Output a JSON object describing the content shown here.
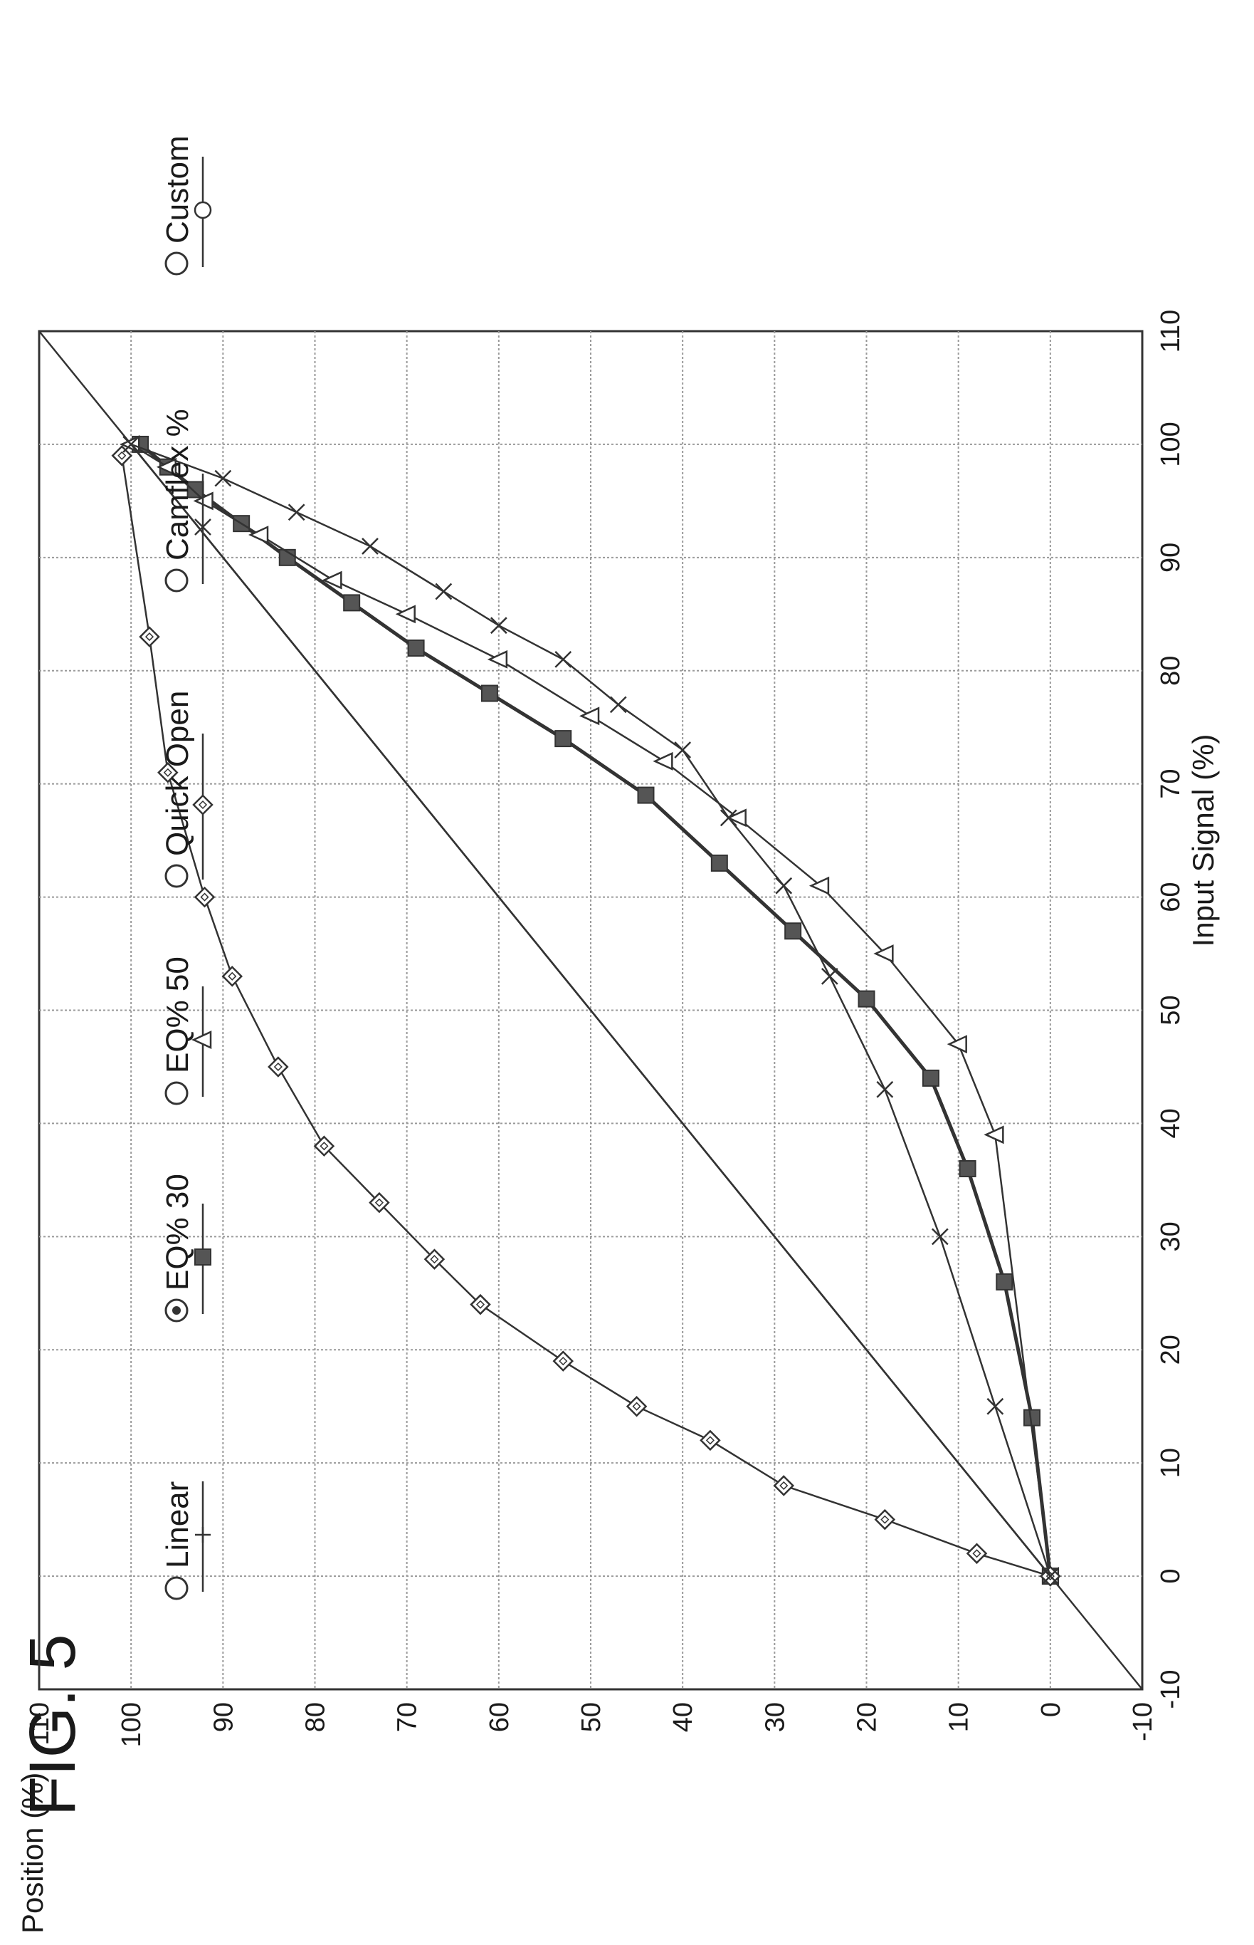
{
  "figure": {
    "label": "FIG. 5"
  },
  "legend": {
    "items": [
      {
        "key": "linear",
        "label": "Linear",
        "selected": false,
        "marker": "plus"
      },
      {
        "key": "eq30",
        "label": "EQ% 30",
        "selected": true,
        "marker": "square"
      },
      {
        "key": "eq50",
        "label": "EQ% 50",
        "selected": false,
        "marker": "triangle"
      },
      {
        "key": "quick",
        "label": "Quick Open",
        "selected": false,
        "marker": "diamond"
      },
      {
        "key": "camflex",
        "label": "Camflex %",
        "selected": false,
        "marker": "x"
      },
      {
        "key": "custom",
        "label": "Custom",
        "selected": false,
        "marker": "circle"
      }
    ]
  },
  "chart_data": {
    "type": "line",
    "orientation": "figure rotated 90 degrees counter-clockwise (x axis runs along the right edge)",
    "xlabel": "Input Signal (%)",
    "ylabel": "Position (%)",
    "xlim": [
      -10,
      110
    ],
    "ylim": [
      -10,
      110
    ],
    "xticks": [
      "-10",
      "0",
      "10",
      "20",
      "30",
      "40",
      "50",
      "60",
      "70",
      "80",
      "90",
      "100",
      "110"
    ],
    "yticks": [
      "-10",
      "0",
      "10",
      "20",
      "30",
      "40",
      "50",
      "60",
      "70",
      "80",
      "90",
      "100",
      "110"
    ],
    "grid": true,
    "series": [
      {
        "name": "Linear",
        "marker": "plus",
        "x": [
          -10,
          110
        ],
        "y": [
          -10,
          110
        ]
      },
      {
        "name": "Linear",
        "marker": "plus",
        "curve": "diagonal 0-100",
        "x": [
          0,
          100
        ],
        "y": [
          0,
          100
        ]
      },
      {
        "name": "EQ% 30",
        "marker": "square",
        "x": [
          0,
          14,
          26,
          36,
          44,
          51,
          57,
          63,
          69,
          74,
          78,
          82,
          86,
          90,
          93,
          96,
          98,
          100
        ],
        "y": [
          0,
          2,
          5,
          9,
          13,
          20,
          28,
          36,
          44,
          53,
          61,
          69,
          76,
          83,
          88,
          93,
          96,
          99
        ]
      },
      {
        "name": "EQ% 50",
        "marker": "triangle",
        "x": [
          0,
          39,
          47,
          55,
          61,
          67,
          72,
          76,
          81,
          85,
          88,
          92,
          95,
          98,
          100
        ],
        "y": [
          0,
          6,
          10,
          18,
          25,
          34,
          42,
          50,
          60,
          70,
          78,
          86,
          92,
          96,
          100
        ]
      },
      {
        "name": "Quick Open",
        "marker": "diamond",
        "x": [
          0,
          2,
          5,
          8,
          12,
          15,
          19,
          24,
          28,
          33,
          38,
          45,
          53,
          60,
          71,
          83,
          99
        ],
        "y": [
          0,
          8,
          18,
          29,
          37,
          45,
          53,
          62,
          67,
          73,
          79,
          84,
          89,
          92,
          96,
          98,
          101
        ]
      },
      {
        "name": "Camflex %",
        "marker": "x",
        "x": [
          0,
          15,
          30,
          43,
          53,
          61,
          67,
          73,
          77,
          81,
          84,
          87,
          91,
          94,
          97,
          100
        ],
        "y": [
          0,
          6,
          12,
          18,
          24,
          29,
          35,
          40,
          47,
          53,
          60,
          66,
          74,
          82,
          90,
          100
        ]
      },
      {
        "name": "Custom",
        "marker": "circle",
        "x": [
          0,
          100
        ],
        "y": [
          0,
          100
        ],
        "note": "overlaps other curves"
      }
    ]
  },
  "colors": {
    "line": "#333333",
    "grid": "#9a9a9a",
    "marker_fill_dark": "#555555",
    "background": "#ffffff"
  }
}
